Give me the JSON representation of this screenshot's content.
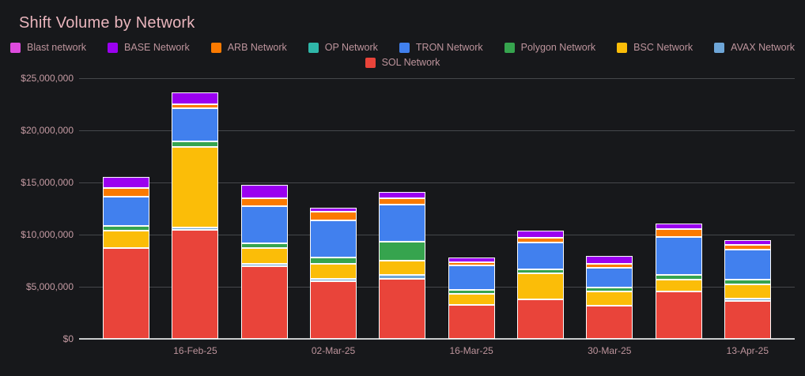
{
  "header": {
    "title": "Shift Volume by Network"
  },
  "colors": {
    "background": "#17181B",
    "title_text": "#E9B5BD",
    "legend_text": "#BD949C",
    "tick_text": "#C49AA2",
    "gridline": "#45474B",
    "zero_line": "#C9CACC",
    "bar_border": "#FBFBFB"
  },
  "legend": {
    "rows": [
      [
        {
          "label": "Blast network",
          "color": "#DE4BDE"
        },
        {
          "label": "BASE Network",
          "color": "#9B00F0"
        },
        {
          "label": "ARB Network",
          "color": "#FB7A00"
        },
        {
          "label": "OP Network",
          "color": "#2FB7A9"
        },
        {
          "label": "TRON Network",
          "color": "#4180EE"
        },
        {
          "label": "Polygon Network",
          "color": "#36A44E"
        },
        {
          "label": "BSC Network",
          "color": "#FBBD08"
        },
        {
          "label": "AVAX Network",
          "color": "#6EA6D8"
        }
      ],
      [
        {
          "label": "SOL Network",
          "color": "#E9443A"
        }
      ]
    ]
  },
  "chart_data": {
    "type": "bar",
    "stacked": true,
    "title": "Shift Volume by Network",
    "xlabel": "",
    "ylabel": "",
    "ylim": [
      0,
      25000000
    ],
    "grid": true,
    "legend_position": "top",
    "n_bars": 10,
    "bar_labels": [
      "",
      "16-Feb-25",
      "",
      "02-Mar-25",
      "",
      "16-Mar-25",
      "",
      "30-Mar-25",
      "",
      "13-Apr-25"
    ],
    "x_tick_labels": [
      "16-Feb-25",
      "02-Mar-25",
      "16-Mar-25",
      "30-Mar-25",
      "13-Apr-25"
    ],
    "y_ticks": [
      {
        "label": "$25,000,000",
        "value": 25000000
      },
      {
        "label": "$20,000,000",
        "value": 20000000
      },
      {
        "label": "$15,000,000",
        "value": 15000000
      },
      {
        "label": "$10,000,000",
        "value": 10000000
      },
      {
        "label": "$5,000,000",
        "value": 5000000
      },
      {
        "label": "$0",
        "value": 0
      }
    ],
    "series": [
      {
        "name": "SOL Network",
        "color": "#E9443A",
        "values": [
          8750000,
          10450000,
          6980000,
          5520000,
          5770000,
          3270000,
          3800000,
          3200000,
          4520000,
          3630000
        ]
      },
      {
        "name": "AVAX Network",
        "color": "#6EA6D8",
        "values": [
          0,
          250000,
          190000,
          260000,
          350000,
          0,
          0,
          0,
          0,
          200000
        ]
      },
      {
        "name": "BSC Network",
        "color": "#FBBD08",
        "values": [
          1700000,
          7700000,
          1510000,
          1440000,
          1360000,
          1060000,
          2470000,
          1370000,
          1150000,
          1340000
        ]
      },
      {
        "name": "Polygon Network",
        "color": "#36A44E",
        "values": [
          450000,
          550000,
          460000,
          570000,
          1840000,
          390000,
          350000,
          360000,
          420000,
          450000
        ]
      },
      {
        "name": "TRON Network",
        "color": "#4180EE",
        "values": [
          2800000,
          3150000,
          3590000,
          3550000,
          3550000,
          2330000,
          2580000,
          1890000,
          3610000,
          2900000
        ]
      },
      {
        "name": "OP Network",
        "color": "#2FB7A9",
        "values": [
          0,
          0,
          0,
          0,
          0,
          0,
          0,
          0,
          0,
          0
        ]
      },
      {
        "name": "ARB Network",
        "color": "#FB7A00",
        "values": [
          800000,
          350000,
          770000,
          830000,
          580000,
          280000,
          490000,
          350000,
          730000,
          450000
        ]
      },
      {
        "name": "BASE Network",
        "color": "#9B00F0",
        "values": [
          1050000,
          1100000,
          1300000,
          380000,
          630000,
          470000,
          700000,
          720000,
          550000,
          450000
        ]
      },
      {
        "name": "Blast network",
        "color": "#DE4BDE",
        "values": [
          0,
          0,
          0,
          0,
          0,
          0,
          0,
          0,
          0,
          0
        ]
      }
    ],
    "totals": [
      15550000,
      23550000,
      14800000,
      12550000,
      14080000,
      7800000,
      10390000,
      7890000,
      10980000,
      9420000
    ]
  }
}
